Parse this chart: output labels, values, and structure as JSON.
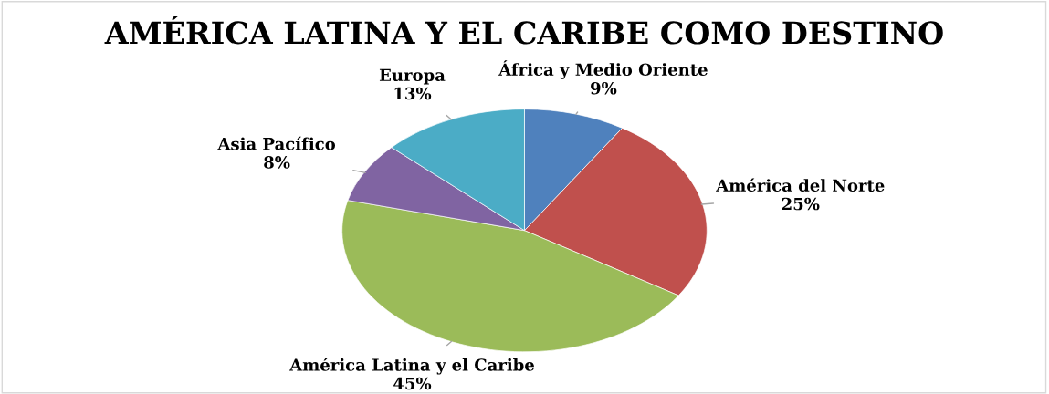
{
  "chart_data": {
    "type": "pie",
    "title": "AMÉRICA LATINA Y EL CARIBE COMO DESTINO",
    "categories": [
      "África y Medio Oriente",
      "América del Norte",
      "América Latina y el Caribe",
      "Asia Pacífico",
      "Europa"
    ],
    "values": [
      9,
      25,
      45,
      8,
      13
    ],
    "value_labels": [
      "9%",
      "25%",
      "45%",
      "8%",
      "13%"
    ],
    "colors": [
      "#4f81bd",
      "#c0504d",
      "#9bbb59",
      "#8064a2",
      "#4bacc6"
    ],
    "legend": false
  }
}
